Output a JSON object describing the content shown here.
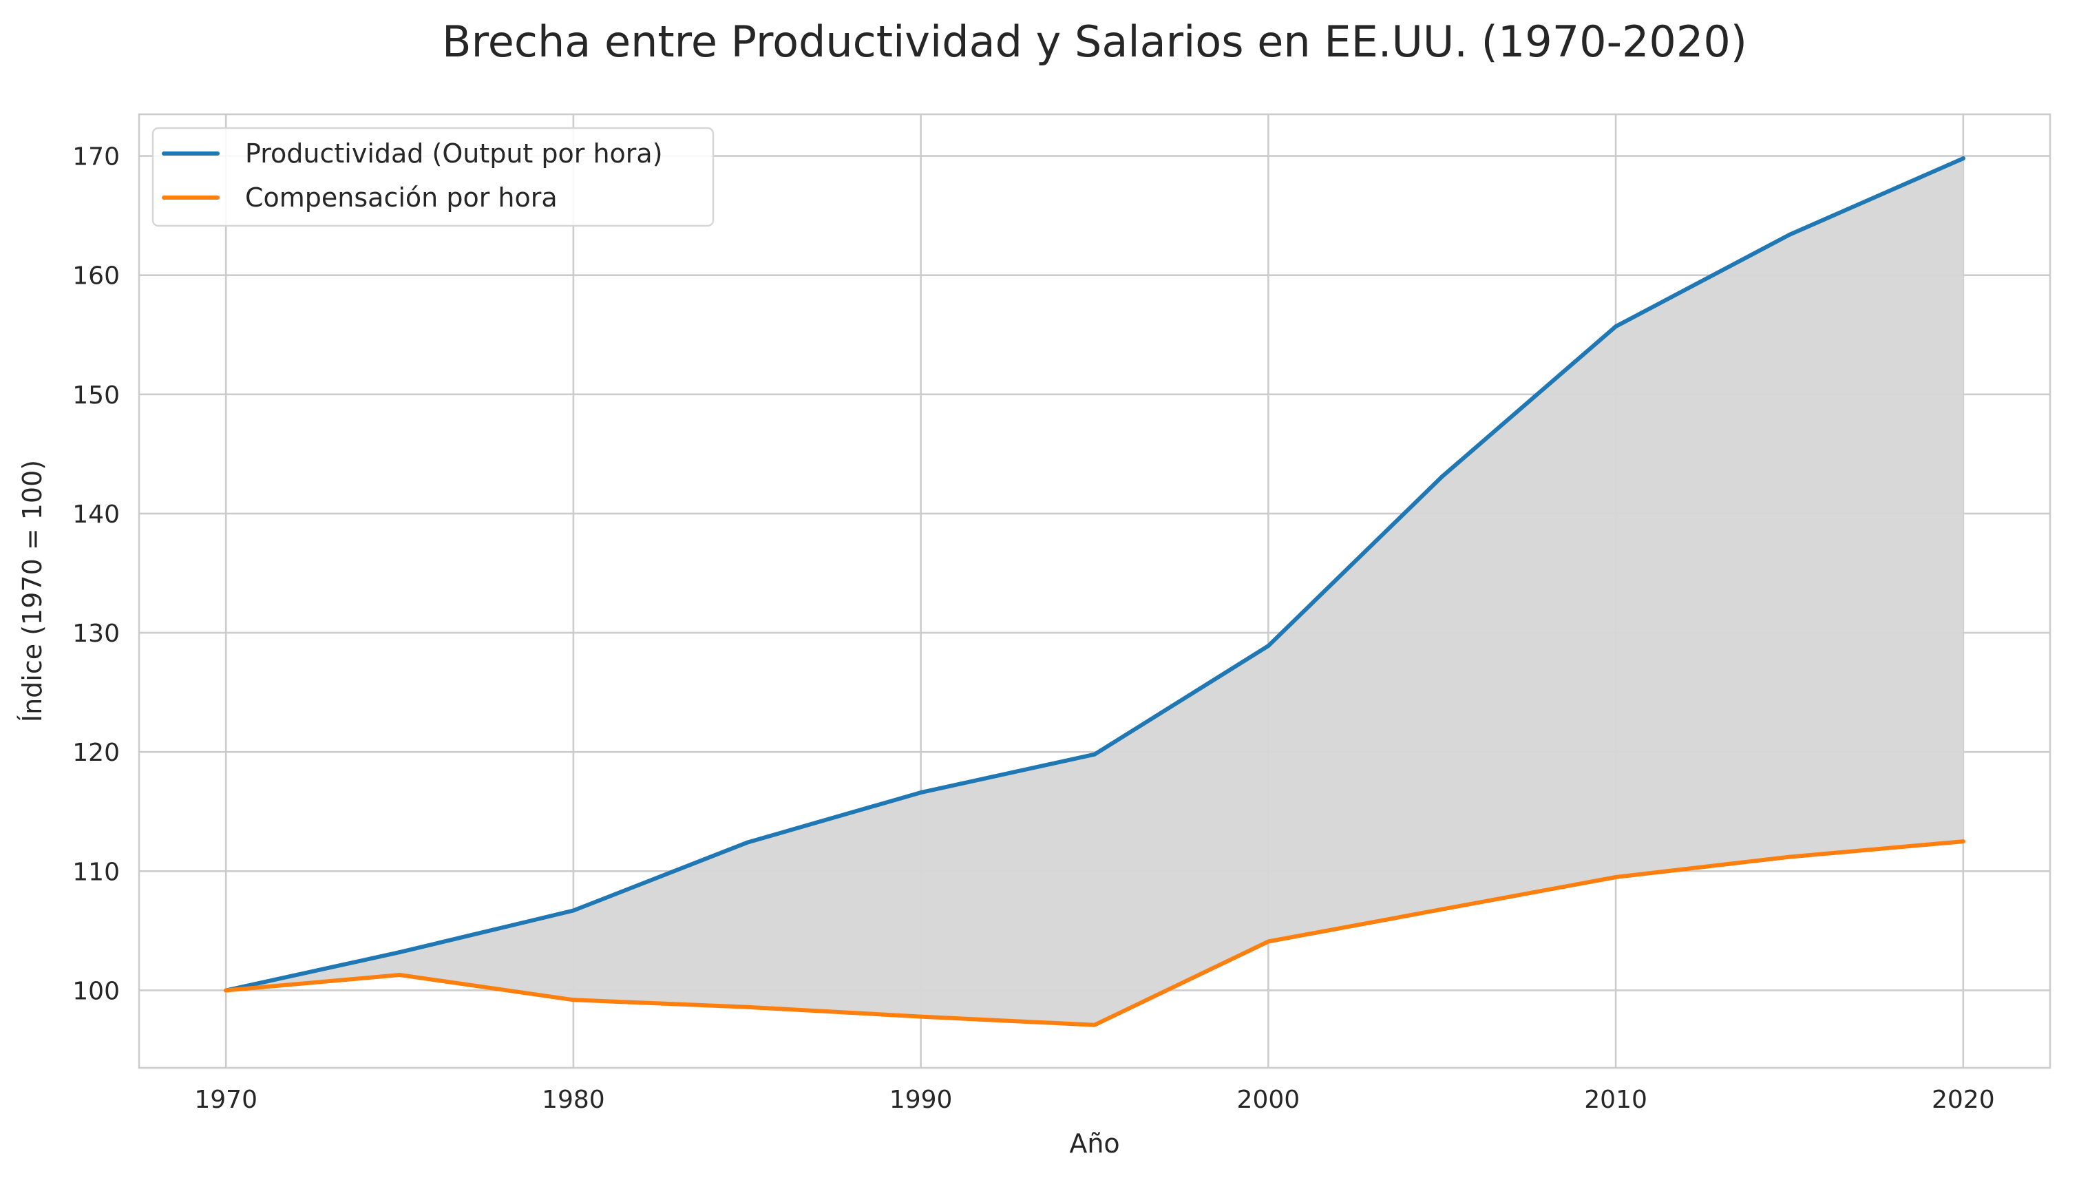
{
  "chart_data": {
    "type": "line",
    "title": "Brecha entre Productividad y Salarios en EE.UU. (1970-2020)",
    "xlabel": "Año",
    "ylabel": "Índice (1970 = 100)",
    "x": [
      1970,
      1975,
      1980,
      1985,
      1990,
      1995,
      2000,
      2005,
      2010,
      2015,
      2020
    ],
    "series": [
      {
        "name": "Productividad (Output por hora)",
        "color": "#1f77b4",
        "values": [
          100.0,
          103.2,
          106.7,
          112.4,
          116.6,
          119.8,
          128.9,
          143.1,
          155.7,
          163.4,
          169.8
        ]
      },
      {
        "name": "Compensación por hora",
        "color": "#ff7f0e",
        "values": [
          100.0,
          101.3,
          99.2,
          98.6,
          97.8,
          97.1,
          104.1,
          106.8,
          109.5,
          111.2,
          112.5
        ]
      }
    ],
    "fill_between": {
      "series": [
        0,
        1
      ],
      "color": "#d6d6d6"
    },
    "xticks": [
      1970,
      1980,
      1990,
      2000,
      2010,
      2020
    ],
    "yticks": [
      100,
      110,
      120,
      130,
      140,
      150,
      160,
      170
    ],
    "xlim": [
      1967.5,
      2022.5
    ],
    "ylim": [
      93.5,
      173.5
    ],
    "grid": true,
    "legend_position": "top-left"
  }
}
